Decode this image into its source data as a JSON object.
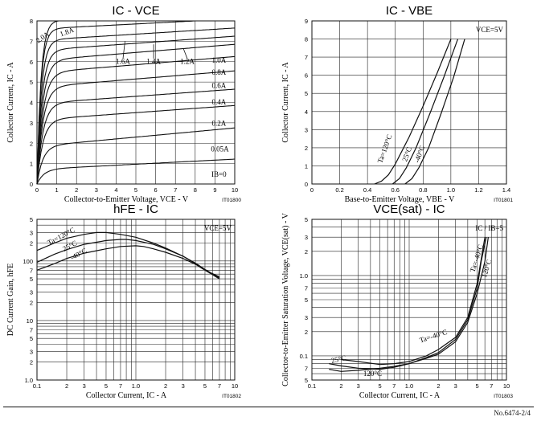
{
  "footer": "No.6474-2/4",
  "chart_data": [
    {
      "id": "ic_vce",
      "type": "line",
      "title": "IC - VCE",
      "xlabel": "Collector-to-Emitter Voltage, VCE - V",
      "ylabel": "Collector Current, IC - A",
      "code": "IT01800",
      "xlim": [
        0,
        10
      ],
      "ylim": [
        0,
        8
      ],
      "xticks": [
        "0",
        "1",
        "2",
        "3",
        "4",
        "5",
        "6",
        "7",
        "8",
        "9",
        "10"
      ],
      "yticks": [
        "0",
        "1",
        "2",
        "3",
        "4",
        "5",
        "6",
        "7",
        "8"
      ],
      "grid": true,
      "series": [
        {
          "name": "2.0A",
          "sat": 8.0,
          "knee": 0.2,
          "slope": 0.04
        },
        {
          "name": "1.8A",
          "sat": 7.6,
          "knee": 0.2,
          "slope": 0.05
        },
        {
          "name": "1.6A",
          "sat": 7.05,
          "knee": 0.22,
          "slope": 0.06
        },
        {
          "name": "1.4A",
          "sat": 6.55,
          "knee": 0.25,
          "slope": 0.07
        },
        {
          "name": "1.2A",
          "sat": 6.05,
          "knee": 0.28,
          "slope": 0.08
        },
        {
          "name": "1.0A",
          "sat": 5.45,
          "knee": 0.3,
          "slope": 0.08
        },
        {
          "name": "0.8A",
          "sat": 4.75,
          "knee": 0.3,
          "slope": 0.08
        },
        {
          "name": "0.6A",
          "sat": 3.95,
          "knee": 0.3,
          "slope": 0.07
        },
        {
          "name": "0.4A",
          "sat": 3.15,
          "knee": 0.3,
          "slope": 0.07
        },
        {
          "name": "0.2A",
          "sat": 1.85,
          "knee": 0.3,
          "slope": 0.09
        },
        {
          "name": "0.05A",
          "sat": 0.72,
          "knee": 0.35,
          "slope": 0.05
        },
        {
          "name": "IB=0",
          "sat": 0.0,
          "knee": 0.3,
          "slope": 0.0
        }
      ],
      "annotations": [
        "2.0A",
        "1.8A",
        "1.6A",
        "1.4A",
        "1.2A",
        "1.0A",
        "0.8A",
        "0.6A",
        "0.4A",
        "0.2A",
        "0.05A",
        "IB=0"
      ]
    },
    {
      "id": "ic_vbe",
      "type": "line",
      "title": "IC - VBE",
      "xlabel": "Base-to-Emitter Voltage, VBE - V",
      "ylabel": "Collector Current, IC - A",
      "code": "IT01801",
      "condition": "VCE=5V",
      "xlim": [
        0,
        1.4
      ],
      "ylim": [
        0,
        9
      ],
      "xticks": [
        "0",
        "0.2",
        "0.4",
        "0.6",
        "0.8",
        "1.0",
        "1.2",
        "1.4"
      ],
      "yticks": [
        "0",
        "1",
        "2",
        "3",
        "4",
        "5",
        "6",
        "7",
        "8",
        "9"
      ],
      "grid": true,
      "series": [
        {
          "name": "Ta=120°C",
          "x": [
            0.45,
            0.5,
            0.55,
            0.6,
            0.7,
            0.8,
            0.9,
            1.0
          ],
          "y": [
            0,
            0.15,
            0.5,
            1.1,
            2.6,
            4.3,
            6.1,
            8.0
          ]
        },
        {
          "name": "25°C",
          "x": [
            0.58,
            0.63,
            0.68,
            0.75,
            0.85,
            0.95,
            1.05
          ],
          "y": [
            0,
            0.3,
            0.9,
            2.0,
            3.9,
            5.9,
            8.0
          ]
        },
        {
          "name": "-40°C",
          "x": [
            0.67,
            0.72,
            0.77,
            0.84,
            0.93,
            1.02,
            1.1
          ],
          "y": [
            0,
            0.3,
            0.9,
            2.0,
            3.9,
            5.9,
            8.0
          ]
        }
      ]
    },
    {
      "id": "hfe_ic",
      "type": "line",
      "title": "hFE - IC",
      "xlabel": "Collector Current, IC - A",
      "ylabel": "DC Current Gain, hFE",
      "code": "IT01802",
      "condition": "VCE=5V",
      "xscale": "log",
      "yscale": "log",
      "xlim": [
        0.1,
        10
      ],
      "ylim": [
        1,
        500
      ],
      "xticks": [
        {
          "v": 0.1,
          "t": "0.1"
        },
        {
          "v": 0.2,
          "t": "2"
        },
        {
          "v": 0.3,
          "t": "3"
        },
        {
          "v": 0.5,
          "t": "5"
        },
        {
          "v": 0.7,
          "t": "7"
        },
        {
          "v": 1,
          "t": "1.0"
        },
        {
          "v": 2,
          "t": "2"
        },
        {
          "v": 3,
          "t": "3"
        },
        {
          "v": 5,
          "t": "5"
        },
        {
          "v": 7,
          "t": "7"
        },
        {
          "v": 10,
          "t": "10"
        }
      ],
      "yticks": [
        {
          "v": 1,
          "t": "1.0"
        },
        {
          "v": 2,
          "t": "2"
        },
        {
          "v": 3,
          "t": "3"
        },
        {
          "v": 5,
          "t": "5"
        },
        {
          "v": 7,
          "t": "7"
        },
        {
          "v": 10,
          "t": "10"
        },
        {
          "v": 20,
          "t": "2"
        },
        {
          "v": 30,
          "t": "3"
        },
        {
          "v": 50,
          "t": "5"
        },
        {
          "v": 70,
          "t": "7"
        },
        {
          "v": 100,
          "t": "100"
        },
        {
          "v": 200,
          "t": "2"
        },
        {
          "v": 300,
          "t": "3"
        },
        {
          "v": 500,
          "t": "5"
        }
      ],
      "grid": true,
      "series": [
        {
          "name": "Ta=120°C",
          "x": [
            0.1,
            0.15,
            0.2,
            0.3,
            0.4,
            0.5,
            0.7,
            1.0,
            1.5,
            2,
            3,
            4,
            5,
            7
          ],
          "y": [
            150,
            200,
            240,
            280,
            300,
            300,
            280,
            250,
            200,
            165,
            120,
            90,
            70,
            50
          ]
        },
        {
          "name": "25°C",
          "x": [
            0.1,
            0.15,
            0.2,
            0.3,
            0.5,
            0.7,
            0.8,
            1.0,
            1.5,
            2,
            3,
            4,
            5,
            7
          ],
          "y": [
            95,
            130,
            155,
            190,
            220,
            230,
            230,
            220,
            190,
            160,
            120,
            92,
            72,
            52
          ]
        },
        {
          "name": "-40°C",
          "x": [
            0.1,
            0.15,
            0.2,
            0.3,
            0.5,
            0.7,
            1.0,
            1.2,
            1.5,
            2,
            3,
            4,
            5,
            7
          ],
          "y": [
            70,
            90,
            110,
            135,
            160,
            175,
            180,
            175,
            160,
            140,
            110,
            88,
            70,
            54
          ]
        }
      ]
    },
    {
      "id": "vce_sat",
      "type": "line",
      "title": "VCE(sat) - IC",
      "xlabel": "Collector Current, IC - A",
      "ylabel": "Collector-to-Emitter Saturation Voltage, VCE(sat) - V",
      "code": "IT01803",
      "condition": "IC / IB=5",
      "xscale": "log",
      "yscale": "log",
      "xlim": [
        0.1,
        10
      ],
      "ylim": [
        0.05,
        5
      ],
      "xticks": [
        {
          "v": 0.1,
          "t": "0.1"
        },
        {
          "v": 0.2,
          "t": "2"
        },
        {
          "v": 0.3,
          "t": "3"
        },
        {
          "v": 0.5,
          "t": "5"
        },
        {
          "v": 0.7,
          "t": "7"
        },
        {
          "v": 1,
          "t": "1.0"
        },
        {
          "v": 2,
          "t": "2"
        },
        {
          "v": 3,
          "t": "3"
        },
        {
          "v": 5,
          "t": "5"
        },
        {
          "v": 7,
          "t": "7"
        },
        {
          "v": 10,
          "t": "10"
        }
      ],
      "yticks": [
        {
          "v": 0.05,
          "t": "5"
        },
        {
          "v": 0.07,
          "t": "7"
        },
        {
          "v": 0.1,
          "t": "0.1"
        },
        {
          "v": 0.2,
          "t": "2"
        },
        {
          "v": 0.3,
          "t": "3"
        },
        {
          "v": 0.5,
          "t": "5"
        },
        {
          "v": 0.7,
          "t": "7"
        },
        {
          "v": 1,
          "t": "1.0"
        },
        {
          "v": 2,
          "t": "2"
        },
        {
          "v": 3,
          "t": "3"
        },
        {
          "v": 5,
          "t": "5"
        }
      ],
      "grid": true,
      "series": [
        {
          "name": "Ta=-40°C",
          "x": [
            0.2,
            0.3,
            0.5,
            0.7,
            1.0,
            1.5,
            2.0,
            3.0,
            4.0,
            5.0,
            5.5,
            6.0
          ],
          "y": [
            0.09,
            0.085,
            0.078,
            0.08,
            0.085,
            0.1,
            0.12,
            0.17,
            0.3,
            0.8,
            1.6,
            3.0
          ]
        },
        {
          "name": "25°C",
          "x": [
            0.15,
            0.2,
            0.3,
            0.5,
            0.7,
            1.0,
            1.5,
            2.0,
            3.0,
            4.0,
            5.0,
            5.5,
            6.2
          ],
          "y": [
            0.08,
            0.075,
            0.07,
            0.068,
            0.072,
            0.08,
            0.095,
            0.11,
            0.16,
            0.28,
            0.7,
            1.5,
            3.0
          ]
        },
        {
          "name": "120°C",
          "x": [
            0.15,
            0.2,
            0.3,
            0.5,
            0.7,
            1.0,
            1.5,
            2.0,
            3.0,
            4.0,
            5.0,
            6.0,
            6.5
          ],
          "y": [
            0.068,
            0.064,
            0.066,
            0.07,
            0.074,
            0.08,
            0.093,
            0.105,
            0.15,
            0.26,
            0.6,
            1.5,
            3.0
          ]
        }
      ]
    }
  ]
}
